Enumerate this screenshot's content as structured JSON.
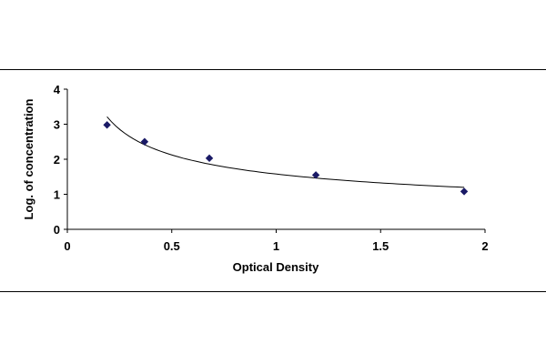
{
  "chart_data": {
    "type": "scatter",
    "title": "",
    "xlabel": "Optical Density",
    "ylabel": "Log. of concentration",
    "xlim": [
      0,
      2
    ],
    "ylim": [
      0,
      4
    ],
    "xticks": [
      "0",
      "0.5",
      "1",
      "1.5",
      "2"
    ],
    "yticks": [
      "0",
      "1",
      "2",
      "3",
      "4"
    ],
    "grid": false,
    "legend": "none",
    "series": [
      {
        "x": [
          0.19,
          0.37,
          0.68,
          1.19,
          1.9
        ],
        "y": [
          2.98,
          2.5,
          2.03,
          1.55,
          1.08
        ],
        "marker": "diamond",
        "color": "#1a1a66"
      }
    ],
    "trendline": {
      "type": "power",
      "color": "#000000"
    }
  }
}
